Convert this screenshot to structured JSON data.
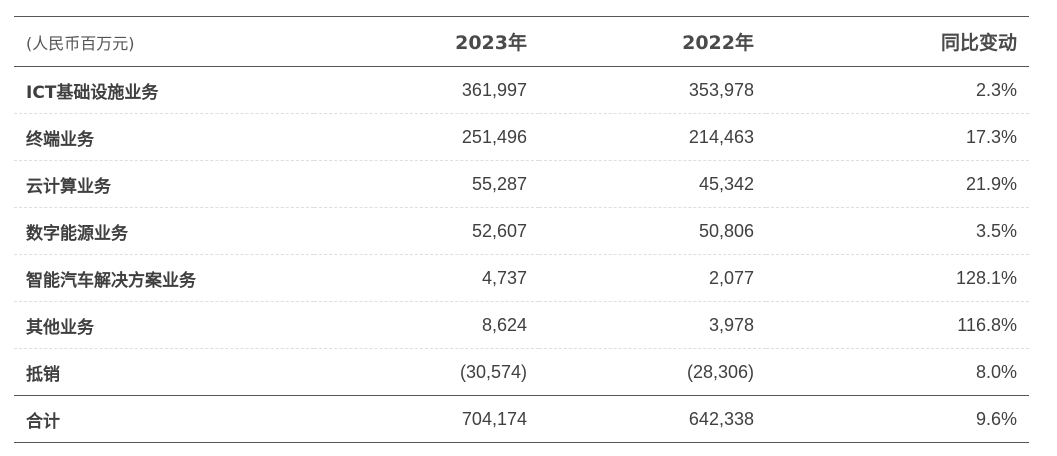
{
  "table": {
    "header": {
      "unit": "(人民币百万元)",
      "col_2023": "2023年",
      "col_2022": "2022年",
      "col_yoy": "同比变动"
    },
    "rows": [
      {
        "name": "ICT基础设施业务",
        "v2023": "361,997",
        "v2022": "353,978",
        "yoy": "2.3%"
      },
      {
        "name": "终端业务",
        "v2023": "251,496",
        "v2022": "214,463",
        "yoy": "17.3%"
      },
      {
        "name": "云计算业务",
        "v2023": "55,287",
        "v2022": "45,342",
        "yoy": "21.9%"
      },
      {
        "name": "数字能源业务",
        "v2023": "52,607",
        "v2022": "50,806",
        "yoy": "3.5%"
      },
      {
        "name": "智能汽车解决方案业务",
        "v2023": "4,737",
        "v2022": "2,077",
        "yoy": "128.1%"
      },
      {
        "name": "其他业务",
        "v2023": "8,624",
        "v2022": "3,978",
        "yoy": "116.8%"
      },
      {
        "name": "抵销",
        "v2023": "(30,574)",
        "v2022": "(28,306)",
        "yoy": "8.0%"
      }
    ],
    "total": {
      "name": "合计",
      "v2023": "704,174",
      "v2022": "642,338",
      "yoy": "9.6%"
    }
  }
}
